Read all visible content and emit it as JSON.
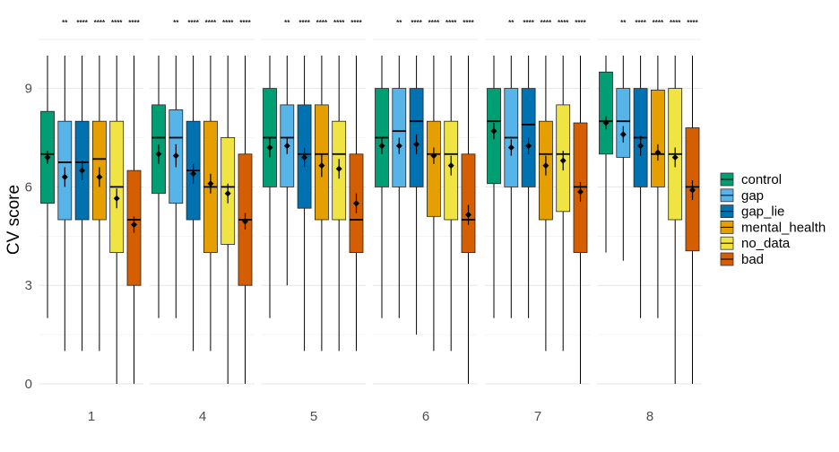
{
  "chart_data": {
    "type": "boxplot",
    "ylabel": "CV score",
    "xlabel": "",
    "ylim": [
      0,
      10
    ],
    "yticks": [
      0,
      3,
      6,
      9
    ],
    "grid": true,
    "legend_position": "right",
    "series": [
      {
        "name": "control",
        "color": "#009E73"
      },
      {
        "name": "gap",
        "color": "#56B4E9"
      },
      {
        "name": "gap_lie",
        "color": "#0072B2"
      },
      {
        "name": "mental_health",
        "color": "#E69F00"
      },
      {
        "name": "no_data",
        "color": "#F0E442"
      },
      {
        "name": "bad",
        "color": "#D55E00"
      }
    ],
    "panels": [
      {
        "label": "1",
        "significance": [
          "**",
          "****",
          "****",
          "****",
          "****"
        ],
        "boxes": [
          {
            "min": 2,
            "q1": 5.5,
            "median": 7,
            "q3": 8.3,
            "max": 10,
            "mean": 6.9,
            "ci": [
              6.7,
              7.1
            ]
          },
          {
            "min": 1,
            "q1": 5,
            "median": 6.75,
            "q3": 8,
            "max": 10,
            "mean": 6.3,
            "ci": [
              6.0,
              6.6
            ]
          },
          {
            "min": 1,
            "q1": 5,
            "median": 6.75,
            "q3": 8,
            "max": 10,
            "mean": 6.5,
            "ci": [
              6.2,
              6.8
            ]
          },
          {
            "min": 1,
            "q1": 5,
            "median": 6.85,
            "q3": 8,
            "max": 10,
            "mean": 6.3,
            "ci": [
              6.0,
              6.6
            ]
          },
          {
            "min": 0,
            "q1": 4,
            "median": 6,
            "q3": 8,
            "max": 10,
            "mean": 5.65,
            "ci": [
              5.35,
              5.95
            ]
          },
          {
            "min": 0,
            "q1": 3,
            "median": 5,
            "q3": 6.5,
            "max": 10,
            "mean": 4.85,
            "ci": [
              4.6,
              5.1
            ]
          }
        ]
      },
      {
        "label": "4",
        "significance": [
          "**",
          "****",
          "****",
          "****",
          "****"
        ],
        "boxes": [
          {
            "min": 2,
            "q1": 5.8,
            "median": 7.5,
            "q3": 8.5,
            "max": 10,
            "mean": 7.0,
            "ci": [
              6.7,
              7.3
            ]
          },
          {
            "min": 2,
            "q1": 5.5,
            "median": 7.5,
            "q3": 8.35,
            "max": 10,
            "mean": 6.95,
            "ci": [
              6.6,
              7.3
            ]
          },
          {
            "min": 1,
            "q1": 5,
            "median": 6.5,
            "q3": 8,
            "max": 10,
            "mean": 6.4,
            "ci": [
              6.1,
              6.7
            ]
          },
          {
            "min": 1,
            "q1": 4,
            "median": 6,
            "q3": 8,
            "max": 10,
            "mean": 6.1,
            "ci": [
              5.8,
              6.4
            ]
          },
          {
            "min": 0,
            "q1": 4.25,
            "median": 6,
            "q3": 7.5,
            "max": 10,
            "mean": 5.8,
            "ci": [
              5.5,
              6.1
            ]
          },
          {
            "min": 0,
            "q1": 3,
            "median": 5,
            "q3": 7,
            "max": 10,
            "mean": 4.95,
            "ci": [
              4.7,
              5.2
            ]
          }
        ]
      },
      {
        "label": "5",
        "significance": [
          "**",
          "****",
          "****",
          "****",
          "****"
        ],
        "boxes": [
          {
            "min": 2,
            "q1": 6,
            "median": 7.5,
            "q3": 9,
            "max": 10,
            "mean": 7.2,
            "ci": [
              6.9,
              7.5
            ]
          },
          {
            "min": 3,
            "q1": 6,
            "median": 7.5,
            "q3": 8.5,
            "max": 10,
            "mean": 7.25,
            "ci": [
              7.0,
              7.5
            ]
          },
          {
            "min": 1,
            "q1": 5.35,
            "median": 7,
            "q3": 8.5,
            "max": 10,
            "mean": 6.9,
            "ci": [
              6.6,
              7.2
            ]
          },
          {
            "min": 1,
            "q1": 5,
            "median": 7,
            "q3": 8.5,
            "max": 10,
            "mean": 6.65,
            "ci": [
              6.3,
              7.0
            ]
          },
          {
            "min": 1,
            "q1": 5,
            "median": 7,
            "q3": 8,
            "max": 10,
            "mean": 6.55,
            "ci": [
              6.25,
              6.85
            ]
          },
          {
            "min": 1,
            "q1": 4,
            "median": 5,
            "q3": 7,
            "max": 10,
            "mean": 5.5,
            "ci": [
              5.2,
              5.8
            ]
          }
        ]
      },
      {
        "label": "6",
        "significance": [
          "**",
          "****",
          "****",
          "****",
          "****"
        ],
        "boxes": [
          {
            "min": 2,
            "q1": 6,
            "median": 7.5,
            "q3": 9,
            "max": 10,
            "mean": 7.25,
            "ci": [
              7.0,
              7.5
            ]
          },
          {
            "min": 2,
            "q1": 6,
            "median": 7.7,
            "q3": 9,
            "max": 10,
            "mean": 7.25,
            "ci": [
              7.0,
              7.5
            ]
          },
          {
            "min": 1.5,
            "q1": 6,
            "median": 8,
            "q3": 9,
            "max": 10,
            "mean": 7.3,
            "ci": [
              7.0,
              7.6
            ]
          },
          {
            "min": 1,
            "q1": 5.1,
            "median": 7,
            "q3": 8,
            "max": 10,
            "mean": 6.95,
            "ci": [
              6.7,
              7.2
            ]
          },
          {
            "min": 1,
            "q1": 5,
            "median": 7,
            "q3": 8,
            "max": 10,
            "mean": 6.65,
            "ci": [
              6.35,
              6.95
            ]
          },
          {
            "min": 0,
            "q1": 4,
            "median": 5,
            "q3": 7,
            "max": 10,
            "mean": 5.15,
            "ci": [
              4.85,
              5.45
            ]
          }
        ]
      },
      {
        "label": "7",
        "significance": [
          "**",
          "****",
          "****",
          "****",
          "****"
        ],
        "boxes": [
          {
            "min": 2,
            "q1": 6.1,
            "median": 8,
            "q3": 9,
            "max": 10,
            "mean": 7.7,
            "ci": [
              7.45,
              7.95
            ]
          },
          {
            "min": 2,
            "q1": 6,
            "median": 7.5,
            "q3": 9,
            "max": 10,
            "mean": 7.2,
            "ci": [
              6.95,
              7.45
            ]
          },
          {
            "min": 2,
            "q1": 6,
            "median": 7.9,
            "q3": 9,
            "max": 10,
            "mean": 7.25,
            "ci": [
              7.0,
              7.5
            ]
          },
          {
            "min": 1,
            "q1": 5,
            "median": 7,
            "q3": 8,
            "max": 10,
            "mean": 6.65,
            "ci": [
              6.35,
              6.95
            ]
          },
          {
            "min": 1,
            "q1": 5.25,
            "median": 7,
            "q3": 8.5,
            "max": 10,
            "mean": 6.8,
            "ci": [
              6.5,
              7.1
            ]
          },
          {
            "min": 0,
            "q1": 4,
            "median": 6,
            "q3": 7.95,
            "max": 10,
            "mean": 5.85,
            "ci": [
              5.55,
              6.15
            ]
          }
        ]
      },
      {
        "label": "8",
        "significance": [
          "**",
          "****",
          "****",
          "****",
          "****"
        ],
        "boxes": [
          {
            "min": 4,
            "q1": 7,
            "median": 8,
            "q3": 9.5,
            "max": 10,
            "mean": 7.95,
            "ci": [
              7.75,
              8.15
            ]
          },
          {
            "min": 3.75,
            "q1": 6.9,
            "median": 8,
            "q3": 9,
            "max": 10,
            "mean": 7.6,
            "ci": [
              7.35,
              7.85
            ]
          },
          {
            "min": 2,
            "q1": 6,
            "median": 7.5,
            "q3": 9,
            "max": 10,
            "mean": 7.25,
            "ci": [
              6.95,
              7.55
            ]
          },
          {
            "min": 2,
            "q1": 6,
            "median": 7,
            "q3": 8.95,
            "max": 10,
            "mean": 7.05,
            "ci": [
              6.8,
              7.3
            ]
          },
          {
            "min": 0,
            "q1": 5,
            "median": 7,
            "q3": 9,
            "max": 10,
            "mean": 6.9,
            "ci": [
              6.6,
              7.2
            ]
          },
          {
            "min": 0,
            "q1": 4.05,
            "median": 6,
            "q3": 7.8,
            "max": 10,
            "mean": 5.9,
            "ci": [
              5.6,
              6.2
            ]
          }
        ]
      }
    ]
  }
}
